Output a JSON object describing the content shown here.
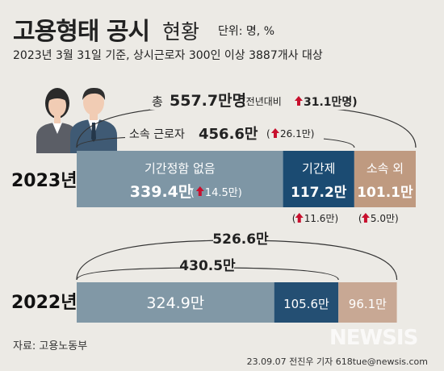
{
  "header": {
    "title": "고용형태 공시",
    "title_suffix": "현황",
    "unit": "단위: 명, %",
    "subtitle": "2023년 3월 31일 기준, 상시근로자 300인 이상 3887개사 대상"
  },
  "footer": {
    "source": "자료: 고용노동부",
    "credit": "23.09.07 전진우 기자 618tue@newsis.com",
    "watermark": "NEWSIS"
  },
  "colors": {
    "no_term": "#7e96a5",
    "fixed_term": "#1b4b72",
    "outsourced": "#bf9a80",
    "bar_2022_no_term": "#8198a6",
    "bar_2022_fixed": "#244f73",
    "bar_2022_out": "#c8a894",
    "up_arrow": "#c8102e"
  },
  "chart_data": {
    "type": "bar",
    "orientation": "horizontal-stacked",
    "unit": "만",
    "categories": [
      "2023년",
      "2022년"
    ],
    "series": [
      {
        "name": "기간정함 없음",
        "values": [
          339.4,
          324.9
        ],
        "labels": [
          "339.4만",
          "324.9만"
        ]
      },
      {
        "name": "기간제",
        "values": [
          117.2,
          105.6
        ],
        "labels": [
          "117.2만",
          "105.6만"
        ]
      },
      {
        "name": "소속 외",
        "values": [
          101.1,
          96.1
        ],
        "labels": [
          "101.1만",
          "96.1만"
        ]
      }
    ],
    "change_2023": {
      "기간정함 없음": "14.5만",
      "기간제": "11.6만",
      "소속 외": "5.0만"
    },
    "totals": [
      {
        "year": "2023년",
        "total_label": "총",
        "total": "557.7만명",
        "yoy_prefix": "(전년대비",
        "yoy_change": "31.1만명)",
        "direct_label": "소속 근로자",
        "direct": "456.6만",
        "direct_change": "(",
        "direct_change_val": "26.1만)"
      },
      {
        "year": "2022년",
        "total": "526.6만",
        "direct": "430.5만"
      }
    ]
  }
}
